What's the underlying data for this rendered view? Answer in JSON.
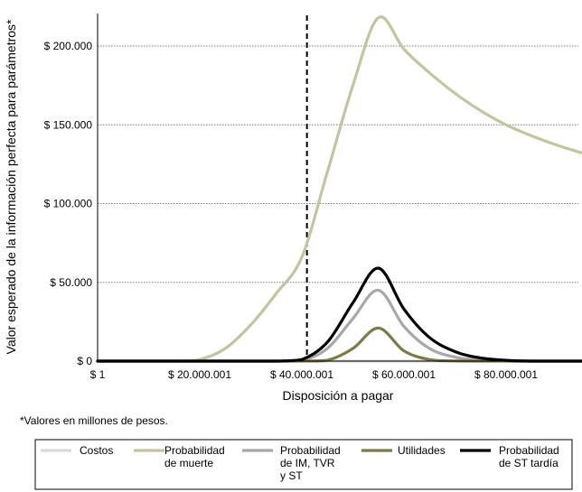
{
  "chart_data": {
    "type": "line",
    "title": "",
    "xlabel": "Disposición a pagar",
    "ylabel": "Valor esperado de la información perfecta para parámetros*",
    "footnote": "*Valores en millones de pesos.",
    "xlim": [
      1,
      99000001
    ],
    "ylim": [
      0,
      220000
    ],
    "x_ticks": [
      {
        "value": 1,
        "label": "$ 1"
      },
      {
        "value": 20000001,
        "label": "$ 20.000.001"
      },
      {
        "value": 40000001,
        "label": "$ 40.000.001"
      },
      {
        "value": 60000001,
        "label": "$ 60.000.001"
      },
      {
        "value": 80000001,
        "label": "$ 80.000.001"
      }
    ],
    "y_ticks": [
      {
        "value": 0,
        "label": "$ 0"
      },
      {
        "value": 50000,
        "label": "$ 50.000"
      },
      {
        "value": 100000,
        "label": "$ 100.000"
      },
      {
        "value": 150000,
        "label": "$ 150.000"
      },
      {
        "value": 200000,
        "label": "$ 200.000"
      }
    ],
    "grid": "horizontal",
    "legend_position": "bottom",
    "reference_line": {
      "x": 41000000,
      "style": "dashed"
    },
    "x": [
      1,
      15000000,
      20000000,
      25000000,
      30000000,
      35000000,
      40000000,
      45000000,
      50000000,
      55000000,
      60000000,
      65000000,
      70000000,
      75000000,
      80000000,
      85000000,
      90000000,
      95000000,
      99000001
    ],
    "series": [
      {
        "name": "Costos",
        "color": "#d9d9d9",
        "values": [
          0,
          0,
          0,
          0,
          0,
          0,
          0,
          0,
          0,
          0,
          0,
          0,
          0,
          0,
          0,
          0,
          0,
          0,
          0
        ]
      },
      {
        "name": "Probabilidad de muerte",
        "color": "#c4c4a0",
        "values": [
          0,
          0,
          1000,
          8000,
          23000,
          43000,
          66000,
          120000,
          175000,
          218000,
          198000,
          183000,
          170000,
          159000,
          150000,
          143000,
          137000,
          132000,
          128000
        ]
      },
      {
        "name": "Probabilidad de IM, TVR y ST",
        "color": "#a8a8a8",
        "values": [
          0,
          0,
          0,
          0,
          0,
          0,
          500,
          8000,
          27000,
          45000,
          22000,
          8000,
          2500,
          700,
          100,
          0,
          0,
          0,
          0
        ]
      },
      {
        "name": "Utilidades",
        "color": "#7d7a4a",
        "values": [
          0,
          0,
          0,
          0,
          0,
          0,
          0,
          500,
          8000,
          21000,
          6500,
          1000,
          100,
          0,
          0,
          0,
          0,
          0,
          0
        ]
      },
      {
        "name": "Probabilidad de ST tardía",
        "color": "#000000",
        "values": [
          0,
          0,
          0,
          0,
          0,
          0,
          1000,
          12000,
          37000,
          59000,
          33000,
          15000,
          6000,
          2000,
          500,
          0,
          0,
          0,
          0
        ]
      }
    ]
  },
  "legend": {
    "items": [
      {
        "name": "Costos",
        "line1": "Costos",
        "line2": "",
        "line3": ""
      },
      {
        "name": "Probabilidad de muerte",
        "line1": "Probabilidad",
        "line2": "de muerte",
        "line3": ""
      },
      {
        "name": "Probabilidad de IM, TVR y ST",
        "line1": "Probabilidad",
        "line2": "de IM, TVR",
        "line3": "y ST"
      },
      {
        "name": "Utilidades",
        "line1": "Utilidades",
        "line2": "",
        "line3": ""
      },
      {
        "name": "Probabilidad de ST tardía",
        "line1": "Probabilidad",
        "line2": "de ST tardía",
        "line3": ""
      }
    ]
  }
}
